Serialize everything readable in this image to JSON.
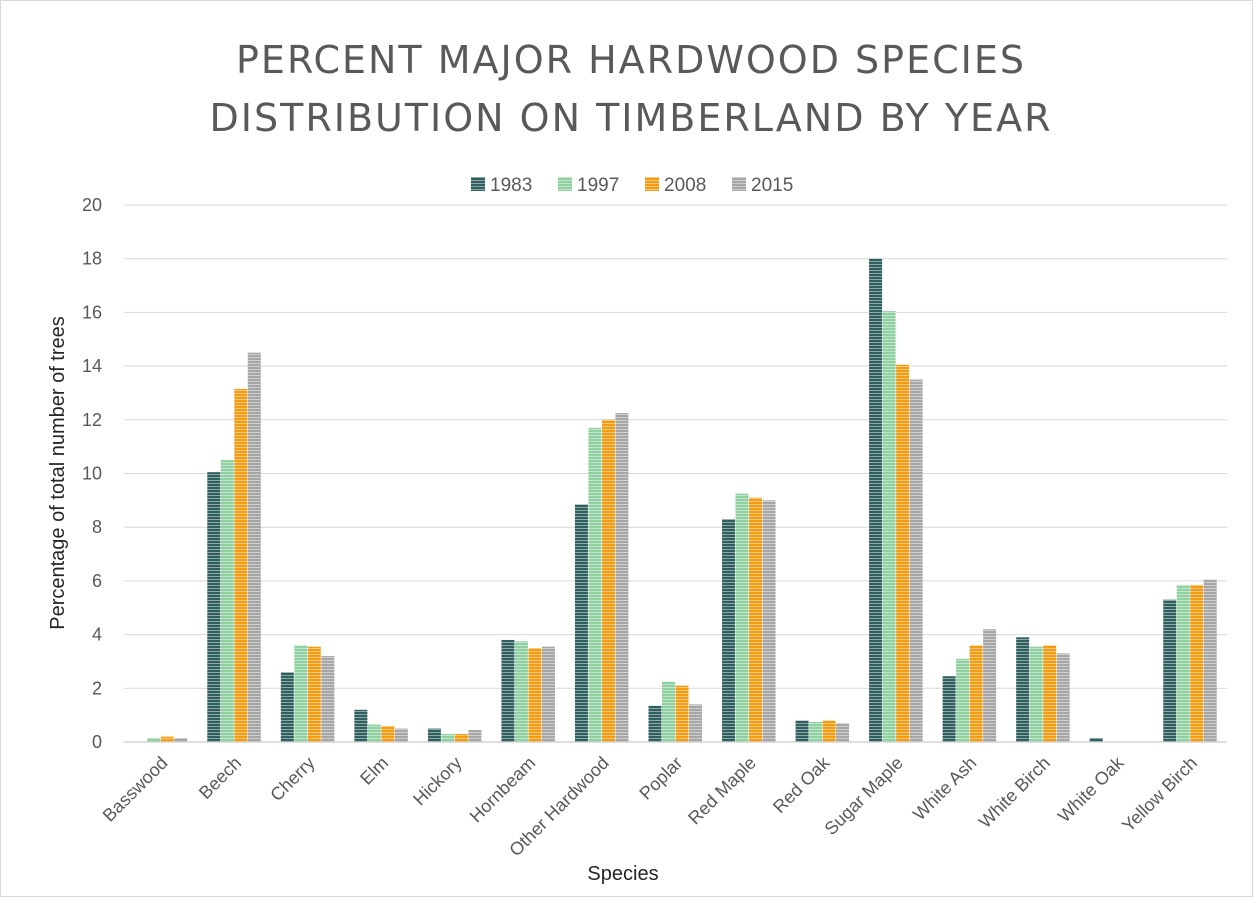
{
  "chart_data": {
    "type": "bar",
    "title": "PERCENT MAJOR HARDWOOD SPECIES DISTRIBUTION ON TIMBERLAND BY YEAR",
    "title_lines": [
      "PERCENT MAJOR HARDWOOD SPECIES",
      "DISTRIBUTION ON TIMBERLAND BY YEAR"
    ],
    "xlabel": "Species",
    "ylabel": "Percentage of total number of trees",
    "ylim": [
      0,
      20
    ],
    "yticks": [
      0,
      2,
      4,
      6,
      8,
      10,
      12,
      14,
      16,
      18,
      20
    ],
    "grid": true,
    "legend_position": "top",
    "categories": [
      "Basswood",
      "Beech",
      "Cherry",
      "Elm",
      "Hickory",
      "Hornbeam",
      "Other Hardwood",
      "Poplar",
      "Red Maple",
      "Red Oak",
      "Sugar Maple",
      "White Ash",
      "White Birch",
      "White Oak",
      "Yellow Birch"
    ],
    "series": [
      {
        "name": "1983",
        "color": "#2f5f5f",
        "values": [
          0.0,
          10.05,
          2.6,
          1.2,
          0.5,
          3.8,
          8.85,
          1.35,
          8.3,
          0.8,
          18.0,
          2.45,
          3.9,
          0.15,
          5.3
        ]
      },
      {
        "name": "1997",
        "color": "#8fd0a0",
        "values": [
          0.15,
          10.5,
          3.6,
          0.65,
          0.3,
          3.75,
          11.7,
          2.25,
          9.25,
          0.75,
          16.05,
          3.1,
          3.55,
          0.0,
          5.85
        ]
      },
      {
        "name": "2008",
        "color": "#f39c12",
        "values": [
          0.2,
          13.15,
          3.55,
          0.6,
          0.3,
          3.5,
          12.0,
          2.1,
          9.1,
          0.8,
          14.05,
          3.6,
          3.6,
          0.0,
          5.85
        ]
      },
      {
        "name": "2015",
        "color": "#a6a6a6",
        "values": [
          0.15,
          14.5,
          3.2,
          0.5,
          0.45,
          3.55,
          12.25,
          1.4,
          9.0,
          0.7,
          13.5,
          4.2,
          3.3,
          0.0,
          6.05
        ]
      }
    ]
  }
}
